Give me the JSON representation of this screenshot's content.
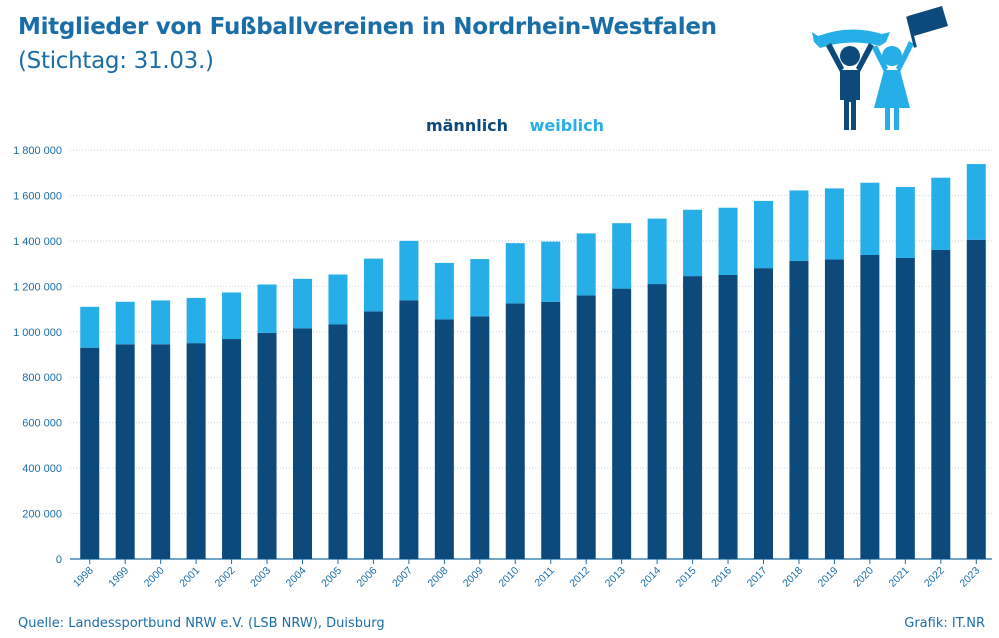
{
  "header": {
    "title": "Mitglieder von Fußballvereinen in Nordrhein-Westfalen",
    "subtitle": "(Stichtag: 31.03.)"
  },
  "legend": {
    "male": "männlich",
    "female": "weiblich"
  },
  "footer": {
    "source": "Quelle: Landessportbund NRW e.V. (LSB NRW), Duisburg",
    "credit": "Grafik: IT.NR"
  },
  "colors": {
    "male": "#0d4a7c",
    "female": "#25aee8",
    "title": "#1a6ea8",
    "axis": "#1a6ea8"
  },
  "chart_data": {
    "type": "bar",
    "stacked": true,
    "title": "Mitglieder von Fußballvereinen in Nordrhein-Westfalen",
    "subtitle": "(Stichtag: 31.03.)",
    "xlabel": "",
    "ylabel": "",
    "ylim": [
      0,
      1800000
    ],
    "yticks": [
      0,
      200000,
      400000,
      600000,
      800000,
      1000000,
      1200000,
      1400000,
      1600000,
      1800000
    ],
    "ytick_labels": [
      "0",
      "200 000",
      "400 000",
      "600 000",
      "800 000",
      "1 000 000",
      "1 200 000",
      "1 400 000",
      "1 600 000",
      "1 800 000"
    ],
    "grid": true,
    "legend_position": "top-center",
    "categories": [
      "1998",
      "1999",
      "2000",
      "2001",
      "2002",
      "2003",
      "2004",
      "2005",
      "2006",
      "2007",
      "2008",
      "2009",
      "2010",
      "2011",
      "2012",
      "2013",
      "2014",
      "2015",
      "2016",
      "2017",
      "2018",
      "2019",
      "2020",
      "2021",
      "2022",
      "2023"
    ],
    "series": [
      {
        "name": "männlich",
        "values": [
          930000,
          945000,
          945000,
          950000,
          968000,
          995000,
          1015000,
          1032000,
          1090000,
          1138000,
          1055000,
          1068000,
          1125000,
          1132000,
          1160000,
          1190000,
          1210000,
          1245000,
          1250000,
          1280000,
          1312000,
          1318000,
          1338000,
          1325000,
          1360000,
          1405000
        ]
      },
      {
        "name": "weiblich",
        "values": [
          180000,
          187000,
          193000,
          199000,
          205000,
          213000,
          218000,
          220000,
          232000,
          262000,
          248000,
          252000,
          265000,
          265000,
          273000,
          288000,
          288000,
          292000,
          296000,
          296000,
          310000,
          313000,
          318000,
          312000,
          318000,
          333000
        ]
      }
    ]
  }
}
